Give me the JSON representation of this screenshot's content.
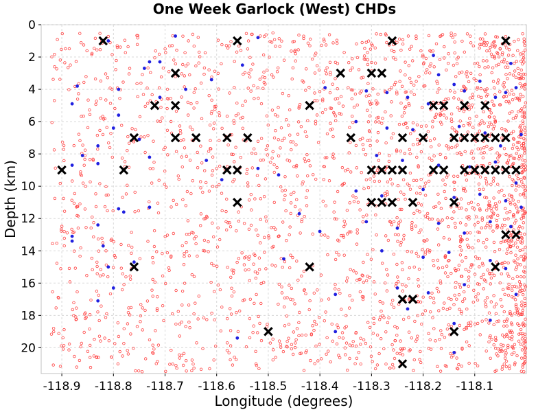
{
  "chart_data": {
    "type": "scatter",
    "title": "One Week Garlock (West) CHDs",
    "xlabel": "Longitude (degrees)",
    "ylabel": "Depth (km)",
    "xlim": [
      -118.94,
      -118.0
    ],
    "ylim": [
      0,
      21.6
    ],
    "y_inverted": true,
    "grid": true,
    "x_ticks": [
      -118.9,
      -118.8,
      -118.7,
      -118.6,
      -118.5,
      -118.4,
      -118.3,
      -118.2,
      -118.1
    ],
    "x_tick_labels": [
      "-118.9",
      "-118.8",
      "-118.7",
      "-118.6",
      "-118.5",
      "-118.4",
      "-118.3",
      "-118.2",
      "-118.1"
    ],
    "y_ticks": [
      0,
      2,
      4,
      6,
      8,
      10,
      12,
      14,
      16,
      18,
      20
    ],
    "y_tick_labels": [
      "0",
      "2",
      "4",
      "6",
      "8",
      "10",
      "12",
      "14",
      "16",
      "18",
      "20"
    ],
    "colors": {
      "background_events": "#ff4040",
      "week_events": "#2020e0",
      "chd_markers": "#000000",
      "grid": "#d8d8d8"
    },
    "series": [
      {
        "marker": "x",
        "points": [
          [
            -118.82,
            1
          ],
          [
            -118.56,
            1
          ],
          [
            -118.26,
            1
          ],
          [
            -118.04,
            1
          ],
          [
            -118.68,
            3
          ],
          [
            -118.36,
            3
          ],
          [
            -118.3,
            3
          ],
          [
            -118.28,
            3
          ],
          [
            -118.72,
            5
          ],
          [
            -118.68,
            5
          ],
          [
            -118.42,
            5
          ],
          [
            -118.18,
            5
          ],
          [
            -118.16,
            5
          ],
          [
            -118.12,
            5
          ],
          [
            -118.08,
            5
          ],
          [
            -118.76,
            7
          ],
          [
            -118.68,
            7
          ],
          [
            -118.64,
            7
          ],
          [
            -118.58,
            7
          ],
          [
            -118.54,
            7
          ],
          [
            -118.34,
            7
          ],
          [
            -118.24,
            7
          ],
          [
            -118.2,
            7
          ],
          [
            -118.14,
            7
          ],
          [
            -118.12,
            7
          ],
          [
            -118.1,
            7
          ],
          [
            -118.08,
            7
          ],
          [
            -118.06,
            7
          ],
          [
            -118.04,
            7
          ],
          [
            -118.9,
            9
          ],
          [
            -118.78,
            9
          ],
          [
            -118.58,
            9
          ],
          [
            -118.56,
            9
          ],
          [
            -118.3,
            9
          ],
          [
            -118.28,
            9
          ],
          [
            -118.26,
            9
          ],
          [
            -118.24,
            9
          ],
          [
            -118.18,
            9
          ],
          [
            -118.16,
            9
          ],
          [
            -118.12,
            9
          ],
          [
            -118.1,
            9
          ],
          [
            -118.08,
            9
          ],
          [
            -118.06,
            9
          ],
          [
            -118.04,
            9
          ],
          [
            -118.02,
            9
          ],
          [
            -118.56,
            11
          ],
          [
            -118.3,
            11
          ],
          [
            -118.28,
            11
          ],
          [
            -118.26,
            11
          ],
          [
            -118.22,
            11
          ],
          [
            -118.14,
            11
          ],
          [
            -118.04,
            13
          ],
          [
            -118.02,
            13
          ],
          [
            -118.76,
            15
          ],
          [
            -118.42,
            15
          ],
          [
            -118.06,
            15
          ],
          [
            -118.24,
            17
          ],
          [
            -118.22,
            17
          ],
          [
            -118.5,
            19
          ],
          [
            -118.14,
            19
          ],
          [
            -118.24,
            21
          ]
        ]
      },
      {
        "marker": "dot",
        "points": [
          [
            -118.81,
            1.0
          ],
          [
            -118.68,
            0.7
          ],
          [
            -118.52,
            0.8
          ],
          [
            -118.55,
            2.5
          ],
          [
            -118.71,
            2.3
          ],
          [
            -118.73,
            2.3
          ],
          [
            -118.74,
            2.7
          ],
          [
            -118.79,
            4.0
          ],
          [
            -118.87,
            3.8
          ],
          [
            -118.71,
            4.5
          ],
          [
            -118.66,
            4.0
          ],
          [
            -118.61,
            3.4
          ],
          [
            -118.88,
            4.9
          ],
          [
            -118.79,
            5.6
          ],
          [
            -118.8,
            6.4
          ],
          [
            -118.75,
            7.1
          ],
          [
            -118.83,
            7.5
          ],
          [
            -118.86,
            8.1
          ],
          [
            -118.73,
            8.2
          ],
          [
            -118.88,
            8.7
          ],
          [
            -118.83,
            8.6
          ],
          [
            -118.62,
            8.4
          ],
          [
            -118.79,
            11.4
          ],
          [
            -118.78,
            11.6
          ],
          [
            -118.73,
            11.3
          ],
          [
            -118.83,
            12.4
          ],
          [
            -118.88,
            13.1
          ],
          [
            -118.88,
            13.4
          ],
          [
            -118.82,
            13.7
          ],
          [
            -118.81,
            15.0
          ],
          [
            -118.76,
            14.7
          ],
          [
            -118.8,
            16.3
          ],
          [
            -118.83,
            17.1
          ],
          [
            -118.56,
            19.4
          ],
          [
            -118.37,
            19.0
          ],
          [
            -118.4,
            12.8
          ],
          [
            -118.47,
            14.5
          ],
          [
            -118.39,
            3.9
          ],
          [
            -118.31,
            4.1
          ],
          [
            -118.27,
            4.2
          ],
          [
            -118.23,
            4.5
          ],
          [
            -118.19,
            4.9
          ],
          [
            -118.14,
            3.7
          ],
          [
            -118.12,
            4.1
          ],
          [
            -118.09,
            3.5
          ],
          [
            -118.06,
            4.5
          ],
          [
            -118.04,
            4.2
          ],
          [
            -118.02,
            3.9
          ],
          [
            -118.03,
            2.4
          ],
          [
            -118.18,
            1.9
          ],
          [
            -118.17,
            3.1
          ],
          [
            -118.33,
            6.0
          ],
          [
            -118.27,
            6.4
          ],
          [
            -118.22,
            6.5
          ],
          [
            -118.13,
            6.3
          ],
          [
            -118.08,
            6.7
          ],
          [
            -118.05,
            7.5
          ],
          [
            -118.01,
            6.8
          ],
          [
            -118.29,
            8.1
          ],
          [
            -118.24,
            8.4
          ],
          [
            -118.17,
            8.7
          ],
          [
            -118.11,
            8.8
          ],
          [
            -118.06,
            8.5
          ],
          [
            -118.02,
            9.8
          ],
          [
            -118.33,
            10.3
          ],
          [
            -118.28,
            10.6
          ],
          [
            -118.2,
            10.2
          ],
          [
            -118.14,
            10.7
          ],
          [
            -118.09,
            10.5
          ],
          [
            -118.04,
            10.9
          ],
          [
            -118.01,
            11.3
          ],
          [
            -118.31,
            12.2
          ],
          [
            -118.25,
            12.6
          ],
          [
            -118.17,
            12.3
          ],
          [
            -118.12,
            12.9
          ],
          [
            -118.07,
            12.2
          ],
          [
            -118.03,
            12.5
          ],
          [
            -118.28,
            14.0
          ],
          [
            -118.2,
            14.4
          ],
          [
            -118.15,
            14.1
          ],
          [
            -118.07,
            14.6
          ],
          [
            -118.04,
            15.1
          ],
          [
            -118.25,
            16.3
          ],
          [
            -118.19,
            16.6
          ],
          [
            -118.12,
            16.1
          ],
          [
            -118.02,
            16.7
          ],
          [
            -118.23,
            17.6
          ],
          [
            -118.14,
            18.5
          ],
          [
            -118.07,
            18.3
          ],
          [
            -118.14,
            20.3
          ],
          [
            -118.37,
            16.7
          ],
          [
            -118.44,
            11.7
          ],
          [
            -118.48,
            9.3
          ],
          [
            -118.52,
            8.9
          ],
          [
            -118.59,
            9.6
          ]
        ]
      }
    ]
  }
}
